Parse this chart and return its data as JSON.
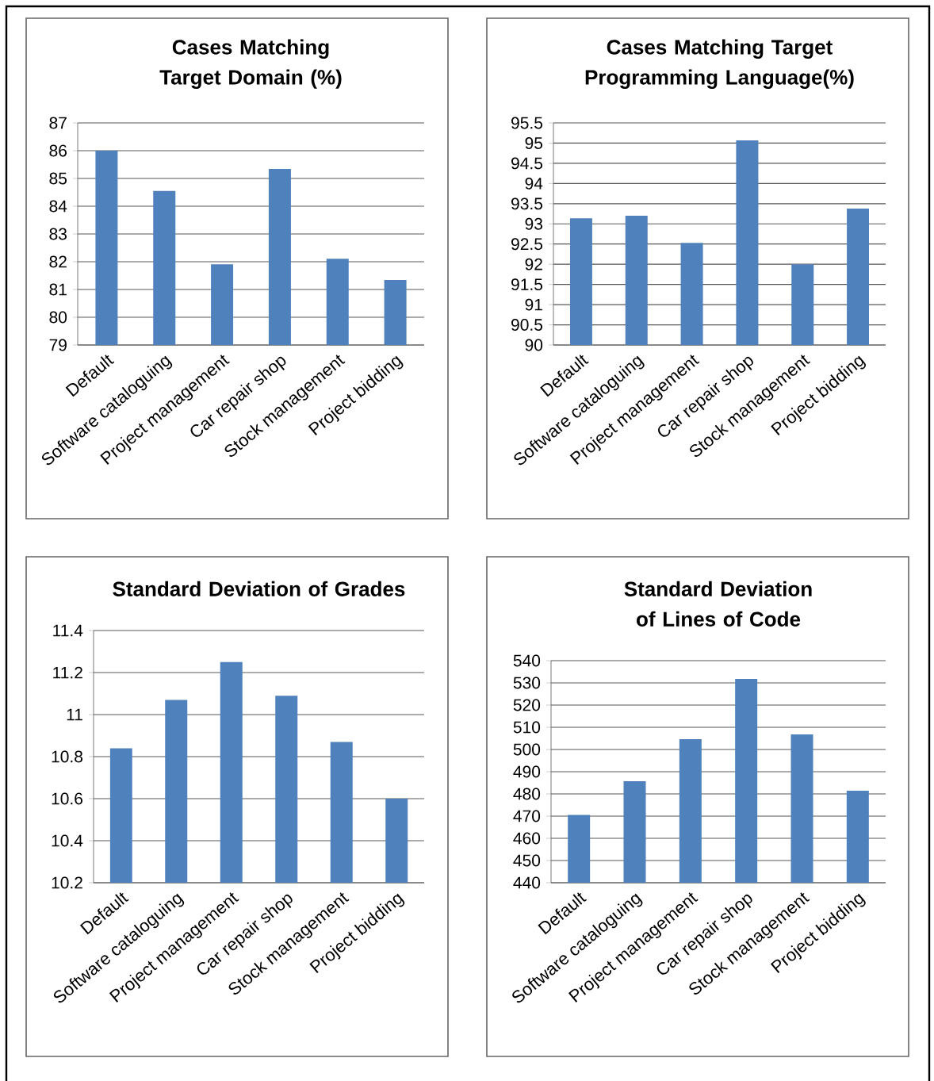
{
  "chart_data": [
    {
      "type": "bar",
      "title": "Cases Matching Target Domain (%)",
      "categories": [
        "Default",
        "Software cataloguing",
        "Project management",
        "Car repair shop",
        "Stock management",
        "Project bidding"
      ],
      "values": [
        86.0,
        84.55,
        81.91,
        85.34,
        82.11,
        81.34
      ],
      "color": "#4f81bd",
      "ylim": [
        79,
        87
      ],
      "yticks": [
        79,
        80,
        81,
        82,
        83,
        84,
        85,
        86,
        87
      ],
      "grid": "y"
    },
    {
      "type": "bar",
      "title": "Cases Matching Target Programming Language(%)",
      "categories": [
        "Default",
        "Software cataloguing",
        "Project management",
        "Car repair shop",
        "Stock management",
        "Project bidding"
      ],
      "values": [
        93.14,
        93.2,
        92.53,
        95.07,
        92.0,
        93.38
      ],
      "color": "#4f81bd",
      "ylim": [
        90,
        95.5
      ],
      "yticks": [
        90,
        90.5,
        91,
        91.5,
        92,
        92.5,
        93,
        93.5,
        94,
        94.5,
        95,
        95.5
      ],
      "grid": "y"
    },
    {
      "type": "bar",
      "title": "Standard Deviation of Grades",
      "categories": [
        "Default",
        "Software cataloguing",
        "Project management",
        "Car repair shop",
        "Stock management",
        "Project bidding"
      ],
      "values": [
        10.84,
        11.07,
        11.25,
        11.09,
        10.87,
        10.6
      ],
      "color": "#4f81bd",
      "ylim": [
        10.2,
        11.4
      ],
      "yticks": [
        10.2,
        10.4,
        10.6,
        10.8,
        11,
        11.2,
        11.4
      ],
      "grid": "y"
    },
    {
      "type": "bar",
      "title": "Standard Deviation of Lines of Code",
      "categories": [
        "Default",
        "Software cataloguing",
        "Project management",
        "Car repair shop",
        "Stock management",
        "Project bidding"
      ],
      "values": [
        470.5,
        485.7,
        504.6,
        531.8,
        506.8,
        481.4
      ],
      "color": "#4f81bd",
      "ylim": [
        440,
        540
      ],
      "yticks": [
        440,
        450,
        460,
        470,
        480,
        490,
        500,
        510,
        520,
        530,
        540
      ],
      "grid": "y"
    }
  ]
}
